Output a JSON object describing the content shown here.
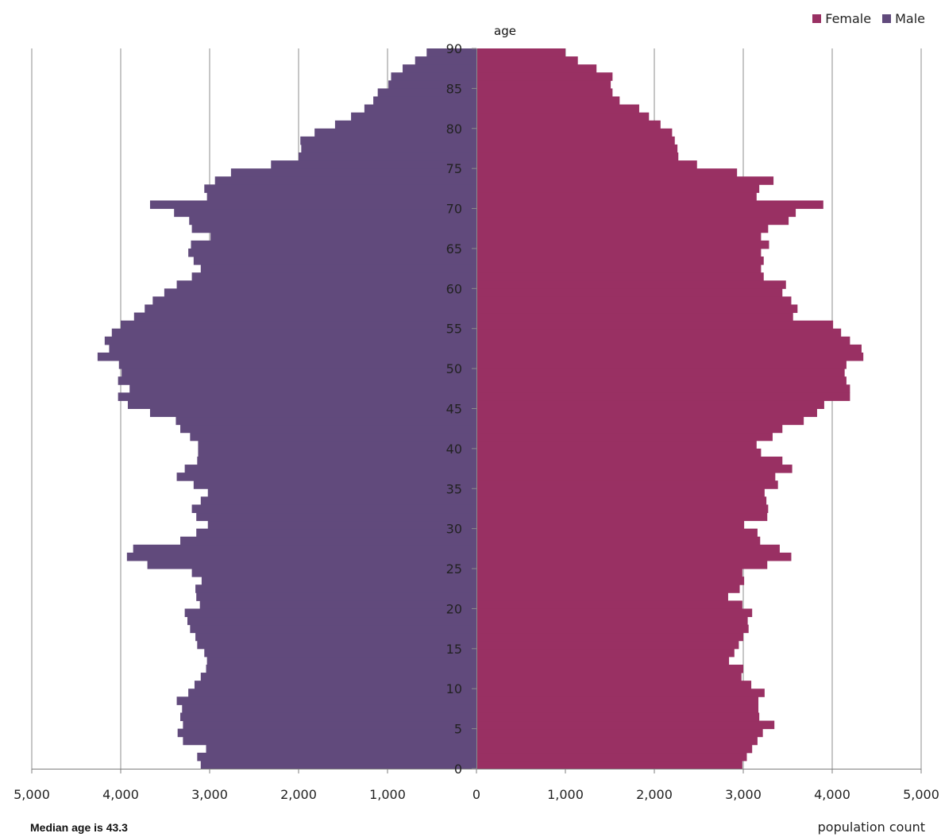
{
  "legend": {
    "female_label": "Female",
    "male_label": "Male",
    "female_color": "#993063",
    "male_color": "#614a7c"
  },
  "y_axis_label": "age",
  "x_axis_label": "population count",
  "median_note": "Median age is 43.3",
  "chart_data": {
    "type": "bar",
    "orientation": "horizontal",
    "subtype": "population-pyramid",
    "ylabel": "age",
    "xlabel": "population count",
    "xlim": [
      -5000,
      5000
    ],
    "ylim": [
      0,
      90
    ],
    "x_ticks": [
      -5000,
      -4000,
      -3000,
      -2000,
      -1000,
      0,
      1000,
      2000,
      3000,
      4000,
      5000
    ],
    "x_tick_labels": [
      "5,000",
      "4,000",
      "3,000",
      "2,000",
      "1,000",
      "0",
      "1,000",
      "2,000",
      "3,000",
      "4,000",
      "5,000"
    ],
    "y_ticks": [
      0,
      5,
      10,
      15,
      20,
      25,
      30,
      35,
      40,
      45,
      50,
      55,
      60,
      65,
      70,
      75,
      80,
      85,
      90
    ],
    "grid": "vertical",
    "legend_position": "top-right",
    "ages": [
      0,
      1,
      2,
      3,
      4,
      5,
      6,
      7,
      8,
      9,
      10,
      11,
      12,
      13,
      14,
      15,
      16,
      17,
      18,
      19,
      20,
      21,
      22,
      23,
      24,
      25,
      26,
      27,
      28,
      29,
      30,
      31,
      32,
      33,
      34,
      35,
      36,
      37,
      38,
      39,
      40,
      41,
      42,
      43,
      44,
      45,
      46,
      47,
      48,
      49,
      50,
      51,
      52,
      53,
      54,
      55,
      56,
      57,
      58,
      59,
      60,
      61,
      62,
      63,
      64,
      65,
      66,
      67,
      68,
      69,
      70,
      71,
      72,
      73,
      74,
      75,
      76,
      77,
      78,
      79,
      80,
      81,
      82,
      83,
      84,
      85,
      86,
      87,
      88,
      89
    ],
    "series": [
      {
        "name": "Male",
        "color": "#614a7c",
        "values": [
          3100,
          3140,
          3040,
          3300,
          3360,
          3300,
          3330,
          3310,
          3370,
          3240,
          3170,
          3100,
          3040,
          3030,
          3060,
          3140,
          3160,
          3220,
          3250,
          3280,
          3110,
          3150,
          3160,
          3090,
          3200,
          3700,
          3930,
          3860,
          3330,
          3150,
          3020,
          3150,
          3200,
          3100,
          3020,
          3180,
          3370,
          3280,
          3140,
          3130,
          3130,
          3220,
          3330,
          3380,
          3670,
          3920,
          4030,
          3900,
          4030,
          3990,
          4020,
          4260,
          4130,
          4180,
          4100,
          4000,
          3850,
          3730,
          3640,
          3510,
          3370,
          3200,
          3100,
          3180,
          3240,
          3210,
          2990,
          3200,
          3230,
          3400,
          3670,
          3030,
          3060,
          2940,
          2760,
          2310,
          2000,
          1970,
          1980,
          1820,
          1590,
          1410,
          1260,
          1160,
          1110,
          990,
          960,
          830,
          690,
          560
        ]
      },
      {
        "name": "Female",
        "color": "#993063",
        "values": [
          2990,
          3040,
          3100,
          3160,
          3220,
          3350,
          3180,
          3170,
          3170,
          3240,
          3090,
          2980,
          3000,
          2840,
          2900,
          2950,
          3000,
          3060,
          3050,
          3100,
          2990,
          2830,
          2960,
          3010,
          2990,
          3270,
          3540,
          3410,
          3190,
          3160,
          3010,
          3270,
          3280,
          3260,
          3240,
          3390,
          3360,
          3550,
          3440,
          3200,
          3150,
          3330,
          3440,
          3680,
          3830,
          3910,
          4200,
          4200,
          4160,
          4140,
          4160,
          4350,
          4330,
          4200,
          4100,
          4010,
          3560,
          3610,
          3540,
          3440,
          3480,
          3230,
          3200,
          3230,
          3200,
          3290,
          3200,
          3280,
          3510,
          3590,
          3900,
          3150,
          3180,
          3340,
          2930,
          2480,
          2270,
          2260,
          2230,
          2200,
          2070,
          1940,
          1830,
          1610,
          1530,
          1510,
          1530,
          1350,
          1140,
          1000
        ]
      }
    ]
  }
}
